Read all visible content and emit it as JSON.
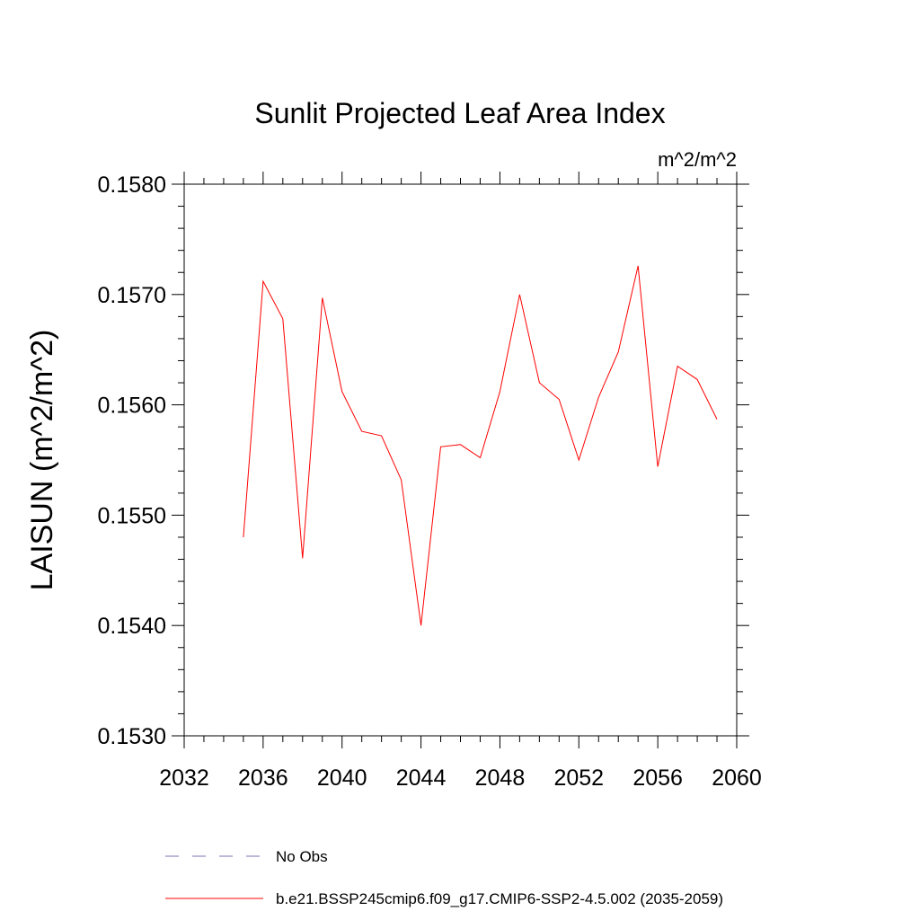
{
  "chart_data": {
    "type": "line",
    "title": "Sunlit Projected Leaf Area Index",
    "units_label": "m^2/m^2",
    "ylabel": "LAISUN  (m^2/m^2)",
    "xlabel": "",
    "xlim": [
      2032,
      2060
    ],
    "ylim": [
      0.153,
      0.158
    ],
    "x_ticks": [
      2032,
      2036,
      2040,
      2044,
      2048,
      2052,
      2056,
      2060
    ],
    "x_tick_labels": [
      "2032",
      "2036",
      "2040",
      "2044",
      "2048",
      "2052",
      "2056",
      "2060"
    ],
    "y_ticks": [
      0.153,
      0.154,
      0.155,
      0.156,
      0.157,
      0.158
    ],
    "y_tick_labels": [
      "0.1530",
      "0.1540",
      "0.1550",
      "0.1560",
      "0.1570",
      "0.1580"
    ],
    "grid": false,
    "legend_position": "bottom",
    "series": [
      {
        "name": "b.e21.BSSP245cmip6.f09_g17.CMIP6-SSP2-4.5.002 (2035-2059)",
        "color": "#ff0000",
        "style": "solid",
        "x": [
          2035,
          2036,
          2037,
          2038,
          2039,
          2040,
          2041,
          2042,
          2043,
          2044,
          2045,
          2046,
          2047,
          2048,
          2049,
          2050,
          2051,
          2052,
          2053,
          2054,
          2055,
          2056,
          2057,
          2058,
          2059
        ],
        "y": [
          0.1548,
          0.15712,
          0.15678,
          0.15461,
          0.15697,
          0.15612,
          0.15576,
          0.15572,
          0.15532,
          0.154,
          0.15562,
          0.15564,
          0.15552,
          0.15612,
          0.157,
          0.1562,
          0.15605,
          0.1555,
          0.15607,
          0.15648,
          0.15726,
          0.15544,
          0.15635,
          0.15623,
          0.15587
        ]
      }
    ],
    "legend": [
      {
        "label": "No Obs",
        "color": "#7b6fb4",
        "style": "dashed"
      },
      {
        "label": "b.e21.BSSP245cmip6.f09_g17.CMIP6-SSP2-4.5.002 (2035-2059)",
        "color": "#ff0000",
        "style": "solid"
      }
    ]
  }
}
